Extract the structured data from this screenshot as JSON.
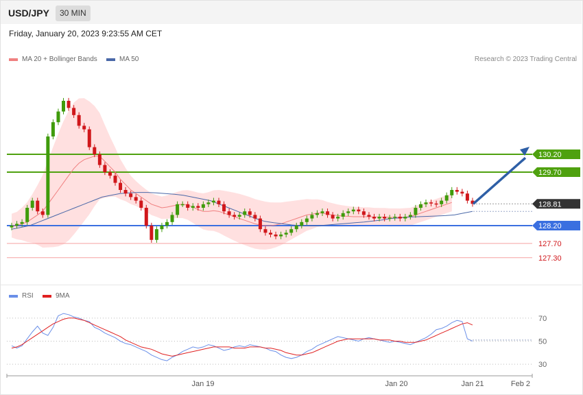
{
  "header": {
    "pair": "USD/JPY",
    "timeframe": "30 MIN",
    "datetime": "Friday, January 20, 2023 9:23:55 AM CET"
  },
  "legend": {
    "ma20": "MA 20 + Bollinger Bands",
    "ma50": "MA 50",
    "rsi": "RSI",
    "ma9": "9MA",
    "credit": "Research © 2023 Trading Central"
  },
  "colors": {
    "up": "#3f9b0b",
    "down": "#d0171b",
    "band": "#ffd8d8",
    "ma20": "#f08080",
    "ma50": "#4a68a8",
    "resistance": "#4fa10f",
    "support": "#3a6fe0",
    "support_extra": "#f5a0a0",
    "rsi": "#6a8fe8",
    "rsi_ma": "#e02020",
    "arrow": "#2e5fa6"
  },
  "chart_data": [
    {
      "type": "candlestick",
      "title": "USD/JPY",
      "ylim": [
        126.45,
        132.7
      ],
      "current_price": "128.81",
      "levels": [
        {
          "label": "130.20",
          "value": 130.2,
          "kind": "resistance"
        },
        {
          "label": "129.70",
          "value": 129.7,
          "kind": "resistance"
        },
        {
          "label": "128.81",
          "value": 128.81,
          "kind": "last"
        },
        {
          "label": "128.20",
          "value": 128.2,
          "kind": "support"
        },
        {
          "label": "127.70",
          "value": 127.7,
          "kind": "support_extra"
        },
        {
          "label": "127.30",
          "value": 127.3,
          "kind": "support_extra"
        }
      ],
      "x_ticks": [
        "Jan 19",
        "Jan 20",
        "Jan 21",
        "Feb 2"
      ],
      "closes": [
        128.2,
        128.25,
        128.3,
        128.7,
        128.9,
        128.6,
        128.5,
        130.7,
        131.1,
        131.4,
        131.7,
        131.5,
        131.3,
        131.0,
        130.9,
        130.4,
        130.2,
        129.9,
        129.7,
        129.6,
        129.4,
        129.2,
        129.1,
        129.0,
        128.9,
        128.7,
        128.2,
        127.8,
        128.1,
        128.2,
        128.3,
        128.5,
        128.8,
        128.8,
        128.7,
        128.75,
        128.7,
        128.8,
        128.85,
        128.9,
        128.8,
        128.6,
        128.5,
        128.45,
        128.5,
        128.6,
        128.5,
        128.4,
        128.1,
        128.0,
        127.95,
        127.9,
        127.95,
        128.0,
        128.1,
        128.2,
        128.3,
        128.4,
        128.5,
        128.55,
        128.6,
        128.5,
        128.4,
        128.45,
        128.55,
        128.6,
        128.65,
        128.6,
        128.5,
        128.45,
        128.4,
        128.45,
        128.4,
        128.42,
        128.45,
        128.4,
        128.45,
        128.5,
        128.7,
        128.8,
        128.85,
        128.82,
        128.8,
        128.9,
        129.05,
        129.2,
        129.15,
        129.1,
        128.9,
        128.81
      ],
      "opens": [
        128.15,
        128.2,
        128.25,
        128.3,
        128.7,
        128.9,
        128.6,
        128.5,
        130.7,
        131.1,
        131.4,
        131.7,
        131.5,
        131.3,
        131.0,
        130.9,
        130.4,
        130.2,
        129.9,
        129.7,
        129.6,
        129.4,
        129.2,
        129.1,
        129.0,
        128.9,
        128.7,
        128.2,
        127.8,
        128.1,
        128.2,
        128.3,
        128.5,
        128.8,
        128.8,
        128.7,
        128.75,
        128.7,
        128.8,
        128.85,
        128.9,
        128.8,
        128.6,
        128.5,
        128.45,
        128.5,
        128.6,
        128.5,
        128.4,
        128.1,
        128.0,
        127.95,
        127.9,
        127.95,
        128.0,
        128.1,
        128.2,
        128.3,
        128.4,
        128.5,
        128.55,
        128.6,
        128.5,
        128.4,
        128.45,
        128.55,
        128.6,
        128.65,
        128.6,
        128.5,
        128.45,
        128.4,
        128.45,
        128.4,
        128.42,
        128.45,
        128.4,
        128.45,
        128.5,
        128.7,
        128.8,
        128.85,
        128.82,
        128.8,
        128.9,
        129.05,
        129.2,
        129.15,
        129.1,
        128.9
      ],
      "ma20": [
        128.2,
        128.2,
        128.25,
        128.3,
        128.4,
        128.5,
        128.6,
        128.8,
        129.0,
        129.2,
        129.4,
        129.6,
        129.8,
        129.95,
        130.05,
        130.1,
        130.15,
        130.15,
        130.0,
        129.85,
        129.7,
        129.5,
        129.35,
        129.2,
        129.1,
        129.0,
        128.9,
        128.8,
        128.75,
        128.7,
        128.72,
        128.75,
        128.78,
        128.8,
        128.78,
        128.72,
        128.65,
        128.6,
        128.6,
        128.62,
        128.6,
        128.55,
        128.5,
        128.45,
        128.4,
        128.35,
        128.3,
        128.25,
        128.22,
        128.2,
        128.2,
        128.22,
        128.25,
        128.3,
        128.35,
        128.4,
        128.45,
        128.5,
        128.52,
        128.55,
        128.55,
        128.52,
        128.5,
        128.48,
        128.47,
        128.46,
        128.45,
        128.45,
        128.45,
        128.45,
        128.44,
        128.44,
        128.44,
        128.43,
        128.43,
        128.43,
        128.44,
        128.45,
        128.5,
        128.55,
        128.6,
        128.65,
        128.7,
        128.75,
        128.8,
        128.85
      ],
      "ma50": [
        128.1,
        128.15,
        128.2,
        128.3,
        128.4,
        128.5,
        128.6,
        128.7,
        128.8,
        128.9,
        129.0,
        129.05,
        129.1,
        129.12,
        129.13,
        129.13,
        129.12,
        129.1,
        129.08,
        129.05,
        129.0,
        128.95,
        128.9,
        128.8,
        128.7,
        128.6,
        128.5,
        128.4,
        128.32,
        128.28,
        128.25,
        128.22,
        128.2,
        128.2,
        128.2,
        128.22,
        128.24,
        128.26,
        128.28,
        128.3,
        128.33,
        128.36,
        128.4,
        128.42,
        128.44,
        128.45,
        128.46,
        128.47,
        128.48,
        128.5,
        128.55,
        128.6
      ]
    },
    {
      "type": "line",
      "title": "RSI",
      "ylim": [
        20,
        80
      ],
      "y_ticks": [
        30,
        50,
        70
      ],
      "rsi": [
        46,
        44,
        46,
        52,
        58,
        63,
        57,
        55,
        62,
        72,
        74,
        73,
        71,
        70,
        68,
        67,
        62,
        60,
        57,
        55,
        53,
        50,
        48,
        47,
        45,
        43,
        41,
        38,
        36,
        34,
        33,
        36,
        38,
        41,
        43,
        45,
        44,
        45,
        47,
        46,
        44,
        42,
        43,
        45,
        46,
        45,
        47,
        46,
        45,
        44,
        42,
        41,
        38,
        36,
        35,
        36,
        38,
        41,
        43,
        46,
        48,
        50,
        52,
        54,
        53,
        52,
        51,
        50,
        52,
        53,
        52,
        51,
        50,
        49,
        50,
        49,
        48,
        47,
        49,
        51,
        53,
        56,
        60,
        61,
        63,
        66,
        68,
        67,
        52,
        50
      ],
      "ma9": [
        44,
        45,
        47,
        50,
        53,
        56,
        59,
        62,
        65,
        67,
        69,
        70,
        70,
        69,
        68,
        66,
        64,
        62,
        60,
        58,
        56,
        54,
        51,
        49,
        47,
        45,
        44,
        43,
        41,
        39,
        38,
        37,
        38,
        39,
        40,
        41,
        42,
        43,
        44,
        45,
        45,
        45,
        45,
        44,
        44,
        44,
        45,
        45,
        45,
        44,
        44,
        43,
        42,
        40,
        39,
        38,
        38,
        39,
        40,
        42,
        44,
        46,
        48,
        50,
        51,
        52,
        52,
        52,
        52,
        52,
        52,
        51,
        51,
        51,
        50,
        50,
        49,
        49,
        49,
        50,
        51,
        53,
        55,
        57,
        59,
        61,
        63,
        65,
        66,
        64
      ]
    }
  ]
}
